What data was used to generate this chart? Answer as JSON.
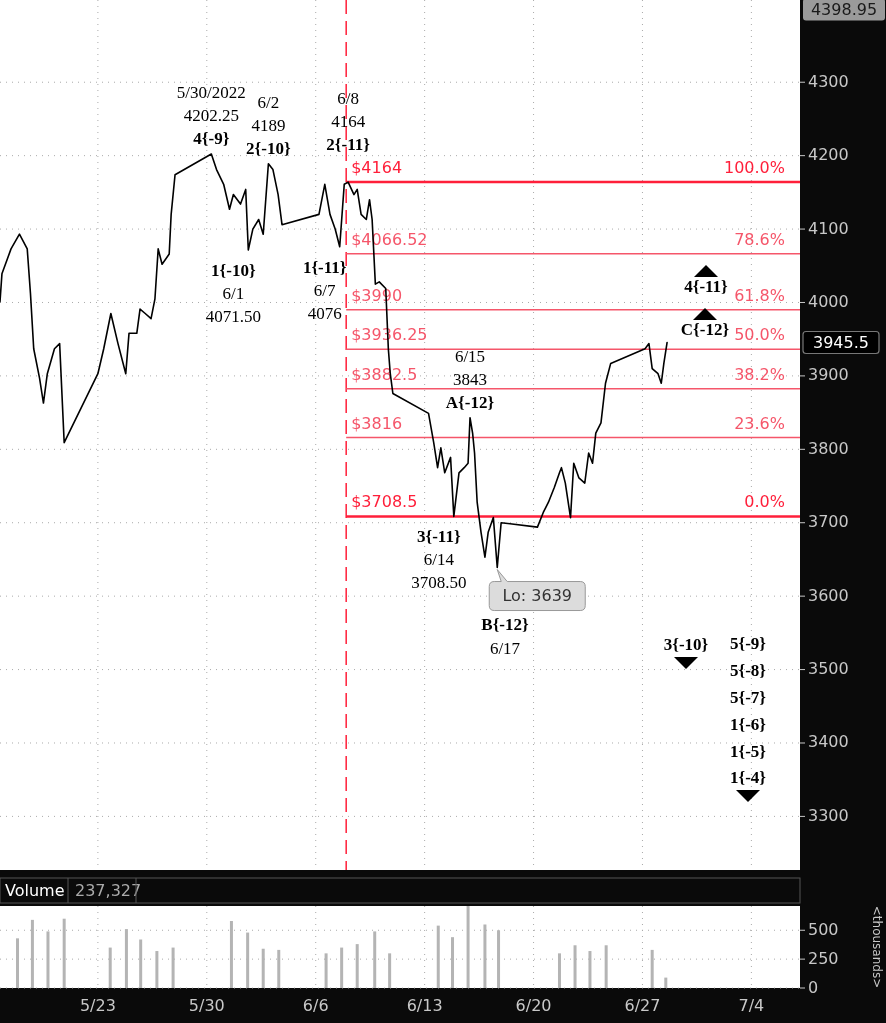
{
  "chart_data": [
    {
      "type": "line",
      "xlim": [
        "2022-05-16T17:00",
        "2022-07-07T03:00"
      ],
      "ylim": [
        3227,
        4412
      ],
      "xticks": [
        {
          "value": "2022-05-23",
          "label": null
        },
        {
          "value": "2022-05-30",
          "label": null
        },
        {
          "value": "2022-06-06",
          "label": null
        },
        {
          "value": "2022-06-13",
          "label": null
        },
        {
          "value": "2022-06-20",
          "label": null
        },
        {
          "value": "2022-06-27",
          "label": null
        },
        {
          "value": "2022-07-04",
          "label": null
        }
      ],
      "yticks": [
        3300,
        3400,
        3500,
        3600,
        3700,
        3800,
        3900,
        {
          "value": 3945.5,
          "label": "3945.5"
        },
        4000,
        4100,
        4200,
        4300,
        {
          "value": 4398.95,
          "label": "4398.95"
        }
      ],
      "tick_labels": "y",
      "grid": true,
      "series": [
        {
          "color": "#000000",
          "x": [
            "2022-05-16T17:00",
            "2022-05-16T20:00",
            "2022-05-17T10:00",
            "2022-05-17T23:00",
            "2022-05-18T11:00",
            "2022-05-18T16:00",
            "2022-05-18T21:00",
            "2022-05-19T06:00",
            "2022-05-19T12:00",
            "2022-05-19T18:00",
            "2022-05-20T05:00",
            "2022-05-20T13:00",
            "2022-05-20T20:00",
            "2022-05-23T00:00",
            "2022-05-23T09:00",
            "2022-05-23T20:00",
            "2022-05-24T07:00",
            "2022-05-24T19:00",
            "2022-05-25T00:00",
            "2022-05-25T12:00",
            "2022-05-25T17:00",
            "2022-05-26T01:00",
            "2022-05-26T10:00",
            "2022-05-26T16:00",
            "2022-05-26T21:00",
            "2022-05-27T03:00",
            "2022-05-27T14:00",
            "2022-05-27T17:00",
            "2022-05-27T23:00",
            "2022-05-30T07:00",
            "2022-05-30T15:00",
            "2022-05-31T02:00",
            "2022-05-31T11:00",
            "2022-05-31T17:00",
            "2022-06-01T04:00",
            "2022-06-01T12:00",
            "2022-06-01T16:00",
            "2022-06-01T23:00",
            "2022-06-02T08:00",
            "2022-06-02T15:00",
            "2022-06-02T23:00",
            "2022-06-03T06:00",
            "2022-06-03T14:00",
            "2022-06-03T20:00",
            "2022-06-06T05:00",
            "2022-06-06T14:00",
            "2022-06-06T22:00",
            "2022-06-07T06:00",
            "2022-06-07T13:00",
            "2022-06-07T20:00",
            "2022-06-08T02:00",
            "2022-06-08T11:00",
            "2022-06-08T16:00",
            "2022-06-08T22:00",
            "2022-06-09T06:00",
            "2022-06-09T11:00",
            "2022-06-09T15:00",
            "2022-06-09T20:00",
            "2022-06-10T02:00",
            "2022-06-10T12:00",
            "2022-06-10T16:00",
            "2022-06-10T19:00",
            "2022-06-10T23:00",
            "2022-06-13T06:00",
            "2022-06-13T14:00",
            "2022-06-13T20:00",
            "2022-06-14T01:00",
            "2022-06-14T07:00",
            "2022-06-14T16:00",
            "2022-06-14T21:00",
            "2022-06-15T05:00",
            "2022-06-15T13:00",
            "2022-06-15T19:00",
            "2022-06-15T22:00",
            "2022-06-16T02:00",
            "2022-06-16T05:00",
            "2022-06-16T09:00",
            "2022-06-16T15:00",
            "2022-06-16T21:00",
            "2022-06-17T02:00",
            "2022-06-17T10:00",
            "2022-06-17T16:00",
            "2022-06-17T22:00",
            "2022-06-20T06:00",
            "2022-06-20T15:00",
            "2022-06-20T23:00",
            "2022-06-21T08:00",
            "2022-06-21T16:00",
            "2022-06-21T19:00",
            "2022-06-22T01:00",
            "2022-06-22T09:00",
            "2022-06-22T14:00",
            "2022-06-22T22:00",
            "2022-06-23T07:00",
            "2022-06-23T13:00",
            "2022-06-23T19:00",
            "2022-06-24T00:00",
            "2022-06-24T08:00",
            "2022-06-24T15:00",
            "2022-06-24T23:00",
            "2022-06-27T04:00",
            "2022-06-27T10:00",
            "2022-06-27T15:00",
            "2022-06-28T00:00",
            "2022-06-28T05:00",
            "2022-06-28T09:00",
            "2022-06-28T14:00"
          ],
          "values": [
            4001,
            4039,
            4073,
            4093,
            4073,
            4012,
            3937,
            3897,
            3863,
            3903,
            3937,
            3944,
            3809,
            3903,
            3937,
            3985,
            3944,
            3903,
            3958,
            3958,
            3991,
            3985,
            3978,
            4005,
            4073,
            4052,
            4066,
            4120,
            4174,
            4202.25,
            4181,
            4161,
            4127,
            4147,
            4134,
            4154,
            4071.5,
            4100,
            4113,
            4093,
            4189,
            4181,
            4147,
            4106,
            4120,
            4161,
            4120,
            4100,
            4076,
            4161,
            4164,
            4147,
            4154,
            4120,
            4113,
            4140,
            4113,
            4025,
            4028,
            4019,
            3937,
            3903,
            3876,
            3849,
            3809,
            3775,
            3802,
            3768,
            3789,
            3708.5,
            3768,
            3775,
            3781,
            3843,
            3822,
            3795,
            3728,
            3687,
            3653,
            3687,
            3707,
            3639,
            3700,
            3694,
            3714,
            3728,
            3748,
            3768,
            3775,
            3754,
            3707,
            3781,
            3761,
            3754,
            3795,
            3781,
            3822,
            3836,
            3890,
            3917,
            3937,
            3944,
            3910,
            3903,
            3890,
            3917,
            3945.5
          ]
        }
      ],
      "ref_lines": [
        {
          "axis": "y",
          "value": 4164,
          "label": "$4164",
          "color": "#ff1f3a"
        },
        {
          "axis": "y",
          "value": 4066.52,
          "label": "$4066.52",
          "color": "#f5566a"
        },
        {
          "axis": "y",
          "value": 3990,
          "label": "$3990",
          "color": "#f5566a"
        },
        {
          "axis": "y",
          "value": 3936.25,
          "label": "$3936.25",
          "color": "#f5566a"
        },
        {
          "axis": "y",
          "value": 3882.5,
          "label": "$3882.5",
          "color": "#f5566a"
        },
        {
          "axis": "y",
          "value": 3816,
          "label": "$3816",
          "color": "#f5566a"
        },
        {
          "axis": "y",
          "value": 3708.5,
          "label": "$3708.5",
          "color": "#ff1f3a"
        },
        {
          "axis": "x",
          "value": "2022-06-07T23:00",
          "color": "#ff1f3a",
          "line_style": "dashed"
        }
      ],
      "annotations": [
        "100.0%",
        "78.6%",
        "61.8%",
        "50.0%",
        "38.2%",
        "23.6%",
        "0.0%",
        "4{-11}",
        "C{-12}",
        "3{-10}",
        "5{-9}",
        "5{-8}",
        "5{-7}",
        "1{-6}",
        "1{-5}",
        "1{-4}",
        {
          "text": "5/30/2022\n4202.25\n4{-9}",
          "x": "2022-05-30T07:00",
          "y": 4202.25
        },
        {
          "text": "6/2\n4189\n2{-10}",
          "x": "2022-06-02T23:00",
          "y": 4189
        },
        {
          "text": "6/8\n4164\n2{-11}",
          "x": "2022-06-08T02:00",
          "y": 4164
        },
        {
          "text": "1{-10}\n6/1\n4071.50",
          "x": "2022-06-01T16:00",
          "y": 4071.5
        },
        {
          "text": "1{-11}\n6/7\n4076",
          "x": "2022-06-07T13:00",
          "y": 4076
        },
        {
          "text": "6/15\n3843\nA{-12}",
          "x": "2022-06-15T22:00",
          "y": 3843
        },
        {
          "text": "3{-11}\n6/14\n3708.50",
          "x": "2022-06-14T21:00",
          "y": 3708.5
        },
        {
          "text": "Lo: 3639",
          "x": "2022-06-17T16:00",
          "y": 3639
        },
        "B{-12}\n6/17"
      ]
    },
    {
      "type": "bar",
      "title": "Volume",
      "annotations": [
        "237,327"
      ],
      "ylabel": "<thousands>",
      "xlim": [
        "2022-05-16T17:00",
        "2022-07-07T03:00"
      ],
      "ylim": [
        0,
        710
      ],
      "xticks": [
        {
          "value": "2022-05-23",
          "label": "5/23"
        },
        {
          "value": "2022-05-30",
          "label": "5/30"
        },
        {
          "value": "2022-06-06",
          "label": "6/6"
        },
        {
          "value": "2022-06-13",
          "label": "6/13"
        },
        {
          "value": "2022-06-20",
          "label": "6/20"
        },
        {
          "value": "2022-06-27",
          "label": "6/27"
        },
        {
          "value": "2022-07-04",
          "label": "7/4"
        }
      ],
      "yticks": [
        0,
        250,
        500
      ],
      "grid": true,
      "series": [
        {
          "color": "#b4b4b4",
          "x": [
            "2022-05-17T20:00",
            "2022-05-18T19:00",
            "2022-05-19T19:00",
            "2022-05-20T20:00",
            "2022-05-23T19:00",
            "2022-05-24T20:00",
            "2022-05-25T18:00",
            "2022-05-26T19:00",
            "2022-05-27T20:00",
            "2022-05-31T14:00",
            "2022-06-01T15:00",
            "2022-06-02T15:00",
            "2022-06-03T15:00",
            "2022-06-06T16:00",
            "2022-06-07T16:00",
            "2022-06-08T16:00",
            "2022-06-09T19:00",
            "2022-06-10T18:00",
            "2022-06-13T21:00",
            "2022-06-14T19:00",
            "2022-06-15T19:00",
            "2022-06-16T21:00",
            "2022-06-17T18:00",
            "2022-06-21T16:00",
            "2022-06-22T16:00",
            "2022-06-23T15:00",
            "2022-06-24T16:00",
            "2022-06-27T15:00",
            "2022-06-28T12:00"
          ],
          "values": [
            430,
            590,
            490,
            600,
            350,
            510,
            420,
            320,
            350,
            580,
            480,
            340,
            330,
            300,
            350,
            380,
            490,
            300,
            540,
            440,
            710,
            550,
            500,
            300,
            370,
            320,
            370,
            330,
            90
          ]
        }
      ]
    }
  ]
}
